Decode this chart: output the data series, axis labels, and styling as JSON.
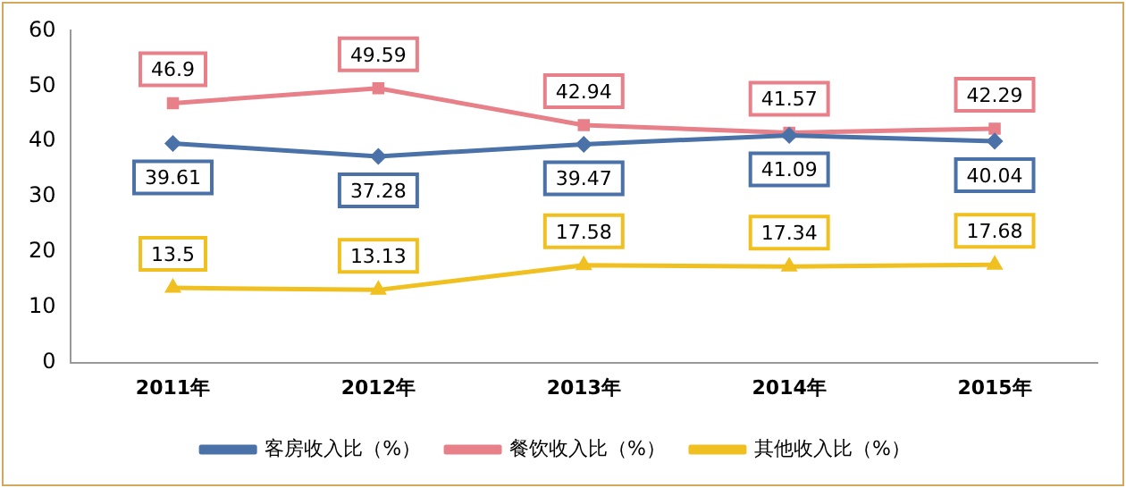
{
  "chart_data": {
    "type": "line",
    "categories": [
      "2011年",
      "2012年",
      "2013年",
      "2014年",
      "2015年"
    ],
    "series": [
      {
        "name": "客房收入比（%）",
        "color": "#4a72a8",
        "marker": "diamond",
        "values": [
          39.61,
          37.28,
          39.47,
          41.09,
          40.04
        ]
      },
      {
        "name": "餐饮收入比（%）",
        "color": "#e8808a",
        "marker": "square",
        "values": [
          46.9,
          49.59,
          42.94,
          41.57,
          42.29
        ]
      },
      {
        "name": "其他收入比（%）",
        "color": "#f0c020",
        "marker": "triangle",
        "values": [
          13.5,
          13.13,
          17.58,
          17.34,
          17.68
        ]
      }
    ],
    "ylim": [
      0,
      60
    ],
    "yticks": [
      0,
      10,
      20,
      30,
      40,
      50,
      60
    ],
    "grid": false,
    "legend": "bottom",
    "data_labels": true
  }
}
